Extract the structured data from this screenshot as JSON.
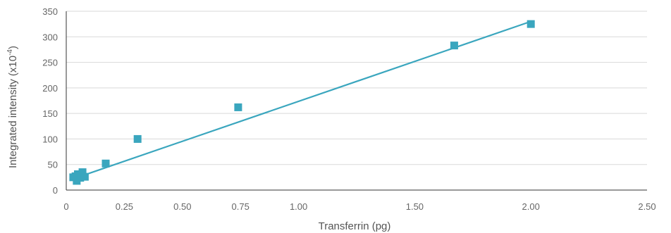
{
  "chart_data": {
    "type": "scatter",
    "title": "",
    "xlabel": "Transferrin (pg)",
    "ylabel": "Integrated intensity (x10",
    "ylabel_sup": "-4",
    "ylabel_close": ")",
    "xlim": [
      0,
      2.5
    ],
    "ylim": [
      0,
      350
    ],
    "x_ticks": [
      0,
      0.25,
      0.5,
      0.75,
      1.0,
      1.5,
      2.0,
      2.5
    ],
    "x_tick_labels": [
      "0",
      "0.25",
      "0.50",
      "0.75",
      "1.00",
      "1.50",
      "2.00",
      "2.50"
    ],
    "y_ticks": [
      0,
      50,
      100,
      150,
      200,
      250,
      300,
      350
    ],
    "y_tick_labels": [
      "0",
      "50",
      "100",
      "150",
      "200",
      "250",
      "300",
      "350"
    ],
    "grid": "horizontal",
    "legend": "none",
    "series": [
      {
        "marker": "square",
        "points": [
          {
            "x": 0.03,
            "y": 25
          },
          {
            "x": 0.04,
            "y": 27
          },
          {
            "x": 0.045,
            "y": 18
          },
          {
            "x": 0.05,
            "y": 31
          },
          {
            "x": 0.055,
            "y": 28
          },
          {
            "x": 0.06,
            "y": 24
          },
          {
            "x": 0.065,
            "y": 29
          },
          {
            "x": 0.07,
            "y": 35
          },
          {
            "x": 0.08,
            "y": 26
          },
          {
            "x": 0.17,
            "y": 52
          },
          {
            "x": 0.307,
            "y": 100
          },
          {
            "x": 0.74,
            "y": 162
          },
          {
            "x": 1.67,
            "y": 283
          },
          {
            "x": 2.0,
            "y": 325
          }
        ]
      }
    ],
    "trendline": {
      "x": [
        0.03,
        2.0
      ],
      "y": [
        22,
        330
      ]
    },
    "colors": {
      "series": "#3aa6be",
      "grid": "#d9d9d9",
      "axis": "#333333",
      "text": "#666666"
    }
  }
}
